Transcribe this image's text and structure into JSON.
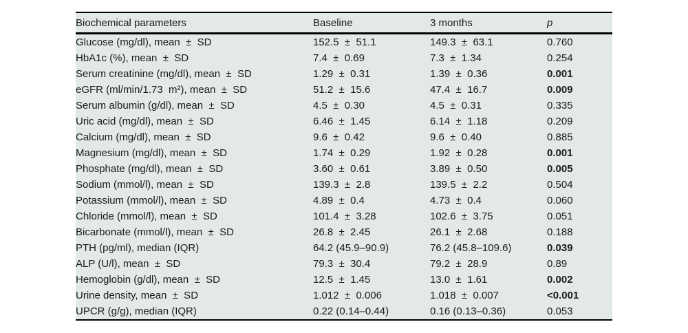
{
  "colors": {
    "table_background": "#e3e8e9",
    "rule_color": "#000000",
    "text_color": "#1a1a1a"
  },
  "table": {
    "headers": {
      "param": "Biochemical parameters",
      "baseline": "Baseline",
      "months3": "3 months",
      "p": "p"
    },
    "rows": [
      {
        "param": "Glucose (mg/dl), mean  ±  SD",
        "baseline": "152.5  ±  51.1",
        "months3": "149.3  ±  63.1",
        "p": "0.760",
        "p_bold": false
      },
      {
        "param": "HbA1c (%), mean  ±  SD",
        "baseline": "7.4  ±  0.69",
        "months3": "7.3  ±  1.34",
        "p": "0.254",
        "p_bold": false
      },
      {
        "param": "Serum creatinine (mg/dl), mean  ±  SD",
        "baseline": "1.29  ±  0.31",
        "months3": "1.39  ±  0.36",
        "p": "0.001",
        "p_bold": true
      },
      {
        "param": "eGFR (ml/min/1.73  m²), mean  ±  SD",
        "baseline": "51.2  ±  15.6",
        "months3": "47.4  ±  16.7",
        "p": "0.009",
        "p_bold": true
      },
      {
        "param": "Serum albumin (g/dl), mean  ±  SD",
        "baseline": "4.5  ±  0.30",
        "months3": "4.5  ±  0.31",
        "p": "0.335",
        "p_bold": false
      },
      {
        "param": "Uric acid (mg/dl), mean  ±  SD",
        "baseline": "6.46  ±  1.45",
        "months3": "6.14  ±  1.18",
        "p": "0.209",
        "p_bold": false
      },
      {
        "param": "Calcium (mg/dl), mean  ±  SD",
        "baseline": "9.6  ±  0.42",
        "months3": "9.6  ±  0.40",
        "p": "0.885",
        "p_bold": false
      },
      {
        "param": "Magnesium (mg/dl), mean  ±  SD",
        "baseline": "1.74  ±  0.29",
        "months3": "1.92  ±  0.28",
        "p": "0.001",
        "p_bold": true
      },
      {
        "param": "Phosphate (mg/dl), mean  ±  SD",
        "baseline": "3.60  ±  0.61",
        "months3": "3.89  ±  0.50",
        "p": "0.005",
        "p_bold": true
      },
      {
        "param": "Sodium (mmol/l), mean  ±  SD",
        "baseline": "139.3  ±  2.8",
        "months3": "139.5  ±  2.2",
        "p": "0.504",
        "p_bold": false
      },
      {
        "param": "Potassium (mmol/l), mean  ±  SD",
        "baseline": "4.89  ±  0.4",
        "months3": "4.73  ±  0.4",
        "p": "0.060",
        "p_bold": false
      },
      {
        "param": "Chloride (mmol/l), mean  ±  SD",
        "baseline": "101.4  ±  3.28",
        "months3": "102.6  ±  3.75",
        "p": "0.051",
        "p_bold": false
      },
      {
        "param": "Bicarbonate (mmol/l), mean  ±  SD",
        "baseline": "26.8  ±  2.45",
        "months3": "26.1  ±  2.68",
        "p": "0.188",
        "p_bold": false
      },
      {
        "param": "PTH (pg/ml), median (IQR)",
        "baseline": "64.2 (45.9–90.9)",
        "months3": "76.2 (45.8–109.6)",
        "p": "0.039",
        "p_bold": true
      },
      {
        "param": "ALP (U/l), mean  ±  SD",
        "baseline": "79.3  ±  30.4",
        "months3": "79.2  ±  28.9",
        "p": "0.89",
        "p_bold": false
      },
      {
        "param": "Hemoglobin (g/dl), mean  ±  SD",
        "baseline": "12.5  ±  1.45",
        "months3": "13.0  ±  1.61",
        "p": "0.002",
        "p_bold": true
      },
      {
        "param": "Urine density, mean  ±  SD",
        "baseline": "1.012  ±  0.006",
        "months3": "1.018  ±  0.007",
        "p": "<0.001",
        "p_bold": true
      },
      {
        "param": "UPCR (g/g), median (IQR)",
        "baseline": "0.22 (0.14–0.44)",
        "months3": "0.16 (0.13–0.36)",
        "p": "0.053",
        "p_bold": false
      }
    ]
  }
}
